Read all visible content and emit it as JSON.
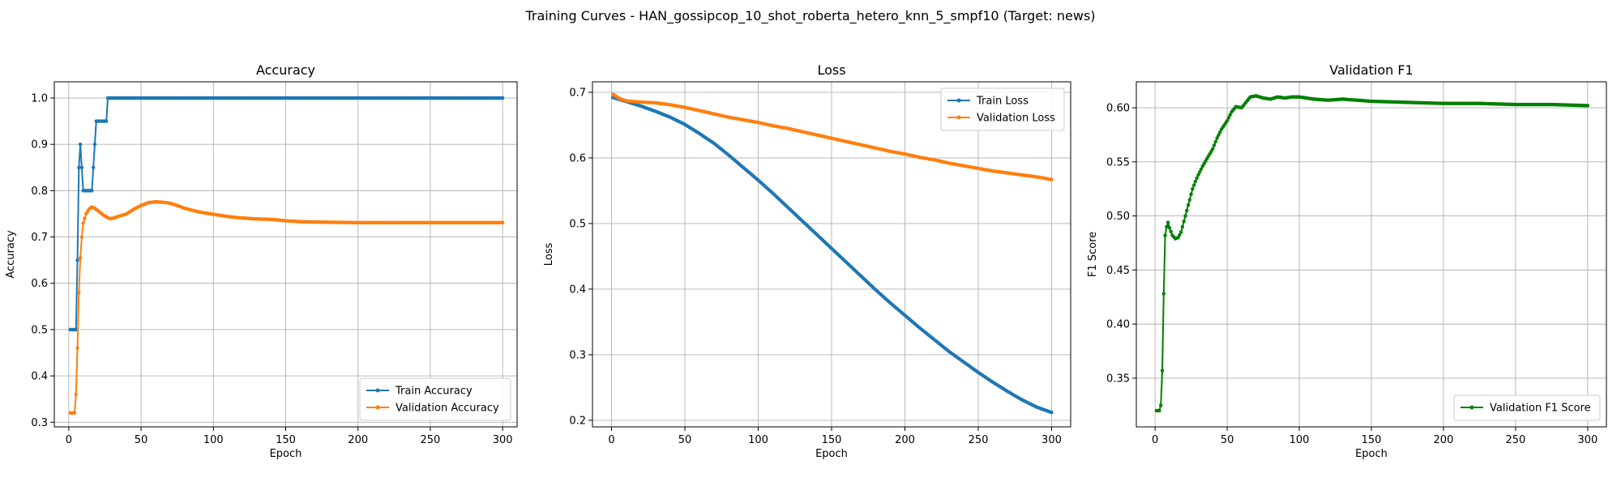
{
  "figure": {
    "suptitle": "Training Curves - HAN_gossipcop_10_shot_roberta_hetero_knn_5_smpf10 (Target: news)"
  },
  "colors": {
    "train": "#1f77b4",
    "validation": "#ff7f0e",
    "f1": "#008000",
    "grid": "#b0b0b0",
    "axis": "#000000"
  },
  "chart_data": [
    {
      "type": "line",
      "title": "Accuracy",
      "xlabel": "Epoch",
      "ylabel": "Accuracy",
      "xlim": [
        -10,
        310
      ],
      "ylim": [
        0.29,
        1.035
      ],
      "xticks": [
        0,
        50,
        100,
        150,
        200,
        250,
        300
      ],
      "yticks": [
        0.3,
        0.4,
        0.5,
        0.6,
        0.7,
        0.8,
        0.9,
        1.0
      ],
      "ytick_labels": [
        "0.3",
        "0.4",
        "0.5",
        "0.6",
        "0.7",
        "0.8",
        "0.9",
        "1.0"
      ],
      "grid": true,
      "legend_position": "lower-right",
      "series": [
        {
          "name": "Train Accuracy",
          "color": "#1f77b4",
          "points": [
            [
              1,
              0.5
            ],
            [
              2,
              0.5
            ],
            [
              3,
              0.5
            ],
            [
              4,
              0.5
            ],
            [
              5,
              0.5
            ],
            [
              6,
              0.65
            ],
            [
              7,
              0.85
            ],
            [
              8,
              0.9
            ],
            [
              9,
              0.85
            ],
            [
              10,
              0.8
            ],
            [
              11,
              0.8
            ],
            [
              12,
              0.8
            ],
            [
              13,
              0.8
            ],
            [
              14,
              0.8
            ],
            [
              15,
              0.8
            ],
            [
              16,
              0.8
            ],
            [
              17,
              0.85
            ],
            [
              18,
              0.9
            ],
            [
              19,
              0.95
            ],
            [
              20,
              0.95
            ],
            [
              21,
              0.95
            ],
            [
              22,
              0.95
            ],
            [
              23,
              0.95
            ],
            [
              24,
              0.95
            ],
            [
              25,
              0.95
            ],
            [
              26,
              0.95
            ],
            [
              27,
              1.0
            ],
            [
              30,
              1.0
            ],
            [
              300,
              1.0
            ]
          ]
        },
        {
          "name": "Validation Accuracy",
          "color": "#ff7f0e",
          "points": [
            [
              1,
              0.32
            ],
            [
              2,
              0.32
            ],
            [
              3,
              0.32
            ],
            [
              4,
              0.32
            ],
            [
              5,
              0.36
            ],
            [
              6,
              0.46
            ],
            [
              7,
              0.58
            ],
            [
              8,
              0.655
            ],
            [
              9,
              0.7
            ],
            [
              10,
              0.73
            ],
            [
              12,
              0.75
            ],
            [
              14,
              0.76
            ],
            [
              16,
              0.765
            ],
            [
              18,
              0.762
            ],
            [
              20,
              0.757
            ],
            [
              22,
              0.752
            ],
            [
              25,
              0.745
            ],
            [
              28,
              0.74
            ],
            [
              30,
              0.74
            ],
            [
              35,
              0.745
            ],
            [
              40,
              0.75
            ],
            [
              45,
              0.76
            ],
            [
              50,
              0.768
            ],
            [
              55,
              0.774
            ],
            [
              60,
              0.776
            ],
            [
              65,
              0.775
            ],
            [
              70,
              0.773
            ],
            [
              75,
              0.768
            ],
            [
              80,
              0.762
            ],
            [
              85,
              0.758
            ],
            [
              90,
              0.754
            ],
            [
              100,
              0.749
            ],
            [
              110,
              0.744
            ],
            [
              120,
              0.741
            ],
            [
              130,
              0.739
            ],
            [
              140,
              0.738
            ],
            [
              150,
              0.735
            ],
            [
              160,
              0.733
            ],
            [
              175,
              0.732
            ],
            [
              200,
              0.731
            ],
            [
              250,
              0.731
            ],
            [
              300,
              0.731
            ]
          ]
        }
      ]
    },
    {
      "type": "line",
      "title": "Loss",
      "xlabel": "Epoch",
      "ylabel": "Loss",
      "xlim": [
        -13,
        313
      ],
      "ylim": [
        0.19,
        0.716
      ],
      "xticks": [
        0,
        50,
        100,
        150,
        200,
        250,
        300
      ],
      "yticks": [
        0.2,
        0.3,
        0.4,
        0.5,
        0.6,
        0.7
      ],
      "ytick_labels": [
        "0.2",
        "0.3",
        "0.4",
        "0.5",
        "0.6",
        "0.7"
      ],
      "grid": true,
      "legend_position": "upper-right",
      "series": [
        {
          "name": "Train Loss",
          "color": "#1f77b4",
          "points": [
            [
              1,
              0.692
            ],
            [
              10,
              0.686
            ],
            [
              20,
              0.679
            ],
            [
              30,
              0.671
            ],
            [
              40,
              0.662
            ],
            [
              50,
              0.651
            ],
            [
              60,
              0.637
            ],
            [
              70,
              0.622
            ],
            [
              80,
              0.604
            ],
            [
              90,
              0.585
            ],
            [
              100,
              0.566
            ],
            [
              110,
              0.546
            ],
            [
              120,
              0.525
            ],
            [
              130,
              0.504
            ],
            [
              140,
              0.483
            ],
            [
              150,
              0.462
            ],
            [
              160,
              0.441
            ],
            [
              170,
              0.42
            ],
            [
              180,
              0.399
            ],
            [
              190,
              0.379
            ],
            [
              200,
              0.36
            ],
            [
              210,
              0.341
            ],
            [
              220,
              0.323
            ],
            [
              230,
              0.305
            ],
            [
              240,
              0.289
            ],
            [
              250,
              0.273
            ],
            [
              260,
              0.258
            ],
            [
              270,
              0.244
            ],
            [
              280,
              0.231
            ],
            [
              290,
              0.22
            ],
            [
              300,
              0.212
            ]
          ]
        },
        {
          "name": "Validation Loss",
          "color": "#ff7f0e",
          "points": [
            [
              1,
              0.697
            ],
            [
              5,
              0.691
            ],
            [
              10,
              0.687
            ],
            [
              20,
              0.685
            ],
            [
              30,
              0.684
            ],
            [
              40,
              0.681
            ],
            [
              50,
              0.677
            ],
            [
              60,
              0.672
            ],
            [
              70,
              0.667
            ],
            [
              80,
              0.662
            ],
            [
              90,
              0.658
            ],
            [
              100,
              0.654
            ],
            [
              110,
              0.649
            ],
            [
              120,
              0.645
            ],
            [
              130,
              0.64
            ],
            [
              140,
              0.635
            ],
            [
              150,
              0.63
            ],
            [
              160,
              0.625
            ],
            [
              170,
              0.62
            ],
            [
              180,
              0.615
            ],
            [
              190,
              0.61
            ],
            [
              200,
              0.606
            ],
            [
              210,
              0.601
            ],
            [
              220,
              0.597
            ],
            [
              230,
              0.592
            ],
            [
              240,
              0.588
            ],
            [
              250,
              0.584
            ],
            [
              260,
              0.58
            ],
            [
              270,
              0.577
            ],
            [
              280,
              0.574
            ],
            [
              290,
              0.571
            ],
            [
              300,
              0.567
            ]
          ]
        }
      ]
    },
    {
      "type": "line",
      "title": "Validation F1",
      "xlabel": "Epoch",
      "ylabel": "F1 Score",
      "xlim": [
        -13,
        313
      ],
      "ylim": [
        0.305,
        0.624
      ],
      "xticks": [
        0,
        50,
        100,
        150,
        200,
        250,
        300
      ],
      "yticks": [
        0.35,
        0.4,
        0.45,
        0.5,
        0.55,
        0.6
      ],
      "ytick_labels": [
        "0.35",
        "0.40",
        "0.45",
        "0.50",
        "0.55",
        "0.60"
      ],
      "grid": true,
      "legend_position": "lower-right",
      "series": [
        {
          "name": "Validation F1 Score",
          "color": "#008000",
          "points": [
            [
              1,
              0.32
            ],
            [
              2,
              0.32
            ],
            [
              3,
              0.32
            ],
            [
              4,
              0.325
            ],
            [
              5,
              0.357
            ],
            [
              6,
              0.428
            ],
            [
              7,
              0.482
            ],
            [
              8,
              0.49
            ],
            [
              9,
              0.494
            ],
            [
              10,
              0.489
            ],
            [
              12,
              0.482
            ],
            [
              14,
              0.479
            ],
            [
              16,
              0.48
            ],
            [
              18,
              0.485
            ],
            [
              20,
              0.495
            ],
            [
              22,
              0.505
            ],
            [
              24,
              0.515
            ],
            [
              26,
              0.525
            ],
            [
              28,
              0.532
            ],
            [
              30,
              0.538
            ],
            [
              33,
              0.546
            ],
            [
              36,
              0.553
            ],
            [
              40,
              0.562
            ],
            [
              43,
              0.572
            ],
            [
              46,
              0.58
            ],
            [
              50,
              0.588
            ],
            [
              53,
              0.596
            ],
            [
              56,
              0.601
            ],
            [
              60,
              0.6
            ],
            [
              63,
              0.605
            ],
            [
              66,
              0.61
            ],
            [
              70,
              0.611
            ],
            [
              75,
              0.609
            ],
            [
              80,
              0.608
            ],
            [
              85,
              0.61
            ],
            [
              90,
              0.609
            ],
            [
              95,
              0.61
            ],
            [
              100,
              0.61
            ],
            [
              110,
              0.608
            ],
            [
              120,
              0.607
            ],
            [
              130,
              0.608
            ],
            [
              140,
              0.607
            ],
            [
              150,
              0.606
            ],
            [
              175,
              0.605
            ],
            [
              200,
              0.604
            ],
            [
              225,
              0.604
            ],
            [
              250,
              0.603
            ],
            [
              275,
              0.603
            ],
            [
              300,
              0.602
            ]
          ]
        }
      ]
    }
  ]
}
